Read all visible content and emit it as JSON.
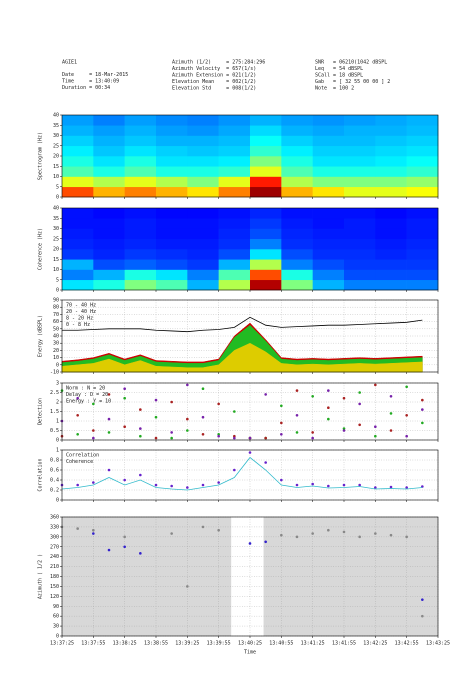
{
  "header": {
    "col1": [
      "AGIE1",
      "Date     = 18-Mar-2015",
      "Time     = 13:40:09",
      "Duration = 00:34"
    ],
    "col2": [
      "Azimuth (1/2)     = 275:284:296",
      "Azimuth Velocity  = 657(1/s)",
      "Azimuth Extension = 021(1/2)",
      "Elevation Mean    = 002(1/2)",
      "Elevation Std     = 008(1/2)"
    ],
    "col3": [
      "SNR   = 06210(1042 dBSPL",
      "Leq   = 54 dBSPL",
      "SCall = 18 dBSPL",
      "Gab   = [ 32 55 00 00 ] 2",
      "Note  = 100 2"
    ]
  },
  "x_axis": {
    "label": "Time",
    "xlim": [
      0,
      360
    ],
    "xticks": [
      {
        "value": 0,
        "label": "13:37:25"
      },
      {
        "value": 30,
        "label": "13:37:55"
      },
      {
        "value": 60,
        "label": "13:38:25"
      },
      {
        "value": 90,
        "label": "13:38:55"
      },
      {
        "value": 120,
        "label": "13:39:25"
      },
      {
        "value": 150,
        "label": "13:39:55"
      },
      {
        "value": 180,
        "label": "13:40:25"
      },
      {
        "value": 210,
        "label": "13:40:55"
      },
      {
        "value": 240,
        "label": "13:41:25"
      },
      {
        "value": 270,
        "label": "13:41:55"
      },
      {
        "value": 300,
        "label": "13:42:25"
      },
      {
        "value": 330,
        "label": "13:42:55"
      },
      {
        "value": 360,
        "label": "13:43:25"
      }
    ],
    "x": [
      0,
      15,
      30,
      45,
      60,
      75,
      90,
      105,
      120,
      135,
      150,
      165,
      180,
      195,
      210,
      225,
      240,
      255,
      270,
      285,
      300,
      315,
      330,
      345
    ]
  },
  "chart_data": [
    {
      "type": "heatmap",
      "ylabel": "Spectrogram (Hz)",
      "ylim": [
        0,
        40
      ],
      "yticks": [
        0,
        5,
        10,
        15,
        20,
        25,
        30,
        35,
        40
      ],
      "colormap": "jet",
      "z": [
        [
          0.8,
          0.7,
          0.75,
          0.7,
          0.65,
          0.75,
          0.97,
          0.7,
          0.65,
          0.6,
          0.6,
          0.62
        ],
        [
          0.6,
          0.55,
          0.6,
          0.55,
          0.5,
          0.6,
          0.85,
          0.55,
          0.5,
          0.5,
          0.5,
          0.52
        ],
        [
          0.45,
          0.4,
          0.45,
          0.4,
          0.4,
          0.42,
          0.6,
          0.45,
          0.4,
          0.4,
          0.4,
          0.42
        ],
        [
          0.4,
          0.35,
          0.4,
          0.35,
          0.35,
          0.36,
          0.5,
          0.4,
          0.35,
          0.35,
          0.36,
          0.38
        ],
        [
          0.36,
          0.32,
          0.35,
          0.33,
          0.32,
          0.33,
          0.42,
          0.36,
          0.33,
          0.33,
          0.34,
          0.35
        ],
        [
          0.33,
          0.3,
          0.32,
          0.3,
          0.3,
          0.31,
          0.38,
          0.33,
          0.31,
          0.31,
          0.32,
          0.33
        ],
        [
          0.3,
          0.28,
          0.3,
          0.28,
          0.27,
          0.29,
          0.34,
          0.3,
          0.29,
          0.3,
          0.3,
          0.31
        ],
        [
          0.28,
          0.25,
          0.28,
          0.26,
          0.25,
          0.27,
          0.3,
          0.28,
          0.27,
          0.28,
          0.29,
          0.3
        ]
      ]
    },
    {
      "type": "heatmap",
      "ylabel": "Coherence (Hz)",
      "ylim": [
        0,
        40
      ],
      "yticks": [
        0,
        5,
        10,
        15,
        20,
        25,
        30,
        35,
        40
      ],
      "colormap": "jet",
      "z": [
        [
          0.35,
          0.4,
          0.5,
          0.45,
          0.3,
          0.55,
          0.95,
          0.5,
          0.3,
          0.25,
          0.25,
          0.25
        ],
        [
          0.25,
          0.3,
          0.4,
          0.35,
          0.25,
          0.45,
          0.8,
          0.4,
          0.25,
          0.2,
          0.2,
          0.2
        ],
        [
          0.3,
          0.2,
          0.22,
          0.2,
          0.18,
          0.3,
          0.55,
          0.25,
          0.2,
          0.18,
          0.18,
          0.18
        ],
        [
          0.18,
          0.16,
          0.18,
          0.17,
          0.16,
          0.2,
          0.35,
          0.2,
          0.17,
          0.17,
          0.16,
          0.17
        ],
        [
          0.16,
          0.15,
          0.16,
          0.15,
          0.15,
          0.17,
          0.25,
          0.17,
          0.16,
          0.16,
          0.15,
          0.16
        ],
        [
          0.15,
          0.14,
          0.15,
          0.14,
          0.14,
          0.16,
          0.2,
          0.16,
          0.15,
          0.15,
          0.14,
          0.15
        ],
        [
          0.14,
          0.14,
          0.15,
          0.14,
          0.14,
          0.15,
          0.18,
          0.15,
          0.14,
          0.15,
          0.14,
          0.15
        ],
        [
          0.14,
          0.13,
          0.14,
          0.13,
          0.13,
          0.14,
          0.16,
          0.14,
          0.14,
          0.14,
          0.13,
          0.14
        ]
      ]
    },
    {
      "type": "area",
      "ylabel": "Energy (dBSPL)",
      "ylim": [
        -10,
        90
      ],
      "yticks": [
        -10,
        0,
        10,
        20,
        30,
        40,
        50,
        60,
        70,
        80,
        90
      ],
      "grid": true,
      "legend": "top-left",
      "series": [
        {
          "name": "70 - 40 Hz",
          "color": "#000000",
          "mode": "lines",
          "values": [
            48,
            48,
            49,
            50,
            50,
            50,
            48,
            47,
            46,
            48,
            49,
            52,
            66,
            55,
            52,
            53,
            54,
            55,
            55,
            56,
            57,
            58,
            59,
            62
          ]
        },
        {
          "name": "20 - 40 Hz",
          "color": "#cc0000",
          "mode": "fill",
          "values": [
            5,
            7,
            10,
            16,
            8,
            14,
            6,
            5,
            4,
            4,
            8,
            40,
            58,
            35,
            10,
            8,
            9,
            8,
            9,
            10,
            9,
            10,
            11,
            12
          ]
        },
        {
          "name": "8 - 20 Hz",
          "color": "#22bb22",
          "mode": "fill",
          "values": [
            3,
            5,
            8,
            14,
            6,
            12,
            4,
            3,
            2,
            2,
            6,
            38,
            55,
            33,
            8,
            6,
            7,
            6,
            7,
            8,
            7,
            8,
            9,
            10
          ]
        },
        {
          "name": "0 - 8 Hz",
          "color": "#ddcc00",
          "mode": "fill",
          "values": [
            -2,
            0,
            2,
            8,
            0,
            6,
            -2,
            -3,
            -4,
            -4,
            0,
            20,
            30,
            18,
            2,
            0,
            1,
            0,
            1,
            2,
            1,
            2,
            3,
            4
          ]
        }
      ]
    },
    {
      "type": "scatter",
      "ylabel": "Detection",
      "ylim": [
        0,
        3
      ],
      "yticks": [
        0,
        0.5,
        1,
        1.5,
        2,
        2.5,
        3
      ],
      "grid": true,
      "legend": "top-left",
      "series": [
        {
          "name": "Norm : N = 20",
          "color": "#22aa22",
          "mode": "markers",
          "values": [
            2.6,
            0.3,
            1.9,
            0.4,
            2.2,
            0.2,
            1.2,
            0.1,
            0.5,
            2.7,
            0.3,
            1.5,
            0.1,
            0.1,
            1.8,
            0.4,
            2.3,
            1.1,
            0.6,
            2.5,
            0.2,
            1.4,
            2.8,
            0.9
          ]
        },
        {
          "name": "Delay : D = 20",
          "color": "#aa2222",
          "mode": "markers",
          "values": [
            0.2,
            1.3,
            0.5,
            2.4,
            0.7,
            1.6,
            0.1,
            2.0,
            1.1,
            0.3,
            1.9,
            0.2,
            0.1,
            0.1,
            0.9,
            2.6,
            0.4,
            1.7,
            2.2,
            0.8,
            2.9,
            0.5,
            1.3,
            2.1
          ]
        },
        {
          "name": "Energy : Y = 10",
          "color": "#7722aa",
          "mode": "markers",
          "values": [
            1.0,
            2.2,
            0.1,
            1.1,
            2.7,
            0.6,
            2.1,
            0.4,
            2.9,
            1.2,
            0.2,
            0.1,
            0.1,
            2.4,
            0.3,
            1.3,
            0.1,
            2.6,
            0.5,
            1.9,
            0.7,
            2.3,
            0.2,
            1.6
          ]
        }
      ]
    },
    {
      "type": "line",
      "ylabel": "Correlation",
      "ylim": [
        0,
        1
      ],
      "yticks": [
        0,
        0.2,
        0.4,
        0.6,
        0.8,
        1
      ],
      "grid": true,
      "legend": "top-left",
      "series": [
        {
          "name": "Correlation",
          "color": "#6622cc",
          "mode": "markers",
          "values": [
            0.3,
            0.3,
            0.35,
            0.6,
            0.4,
            0.5,
            0.3,
            0.28,
            0.25,
            0.3,
            0.35,
            0.6,
            0.95,
            0.75,
            0.4,
            0.3,
            0.32,
            0.28,
            0.3,
            0.3,
            0.25,
            0.26,
            0.25,
            0.27
          ]
        },
        {
          "name": "Coherence",
          "color": "#33bbcc",
          "mode": "lines",
          "values": [
            0.22,
            0.25,
            0.3,
            0.45,
            0.3,
            0.4,
            0.25,
            0.22,
            0.2,
            0.25,
            0.3,
            0.45,
            0.85,
            0.6,
            0.3,
            0.25,
            0.28,
            0.24,
            0.25,
            0.27,
            0.22,
            0.23,
            0.22,
            0.25
          ]
        }
      ]
    },
    {
      "type": "scatter",
      "ylabel": "Azimuth ( 1/2 )",
      "ylim": [
        0,
        360
      ],
      "yticks": [
        0,
        30,
        60,
        90,
        120,
        150,
        180,
        210,
        240,
        270,
        300,
        330,
        360
      ],
      "grid": true,
      "background": "#d8d8d8",
      "highlight_x": [
        162,
        193
      ],
      "series": [
        {
          "color": "#888888",
          "mode": "markers",
          "values": [
            330,
            325,
            320,
            null,
            300,
            null,
            null,
            310,
            150,
            330,
            320,
            null,
            null,
            null,
            305,
            300,
            310,
            320,
            315,
            300,
            310,
            305,
            300,
            60
          ]
        },
        {
          "color": "#3322cc",
          "mode": "markers",
          "values": [
            null,
            null,
            310,
            260,
            270,
            250,
            null,
            null,
            null,
            null,
            null,
            null,
            280,
            285,
            null,
            null,
            null,
            null,
            null,
            null,
            null,
            null,
            null,
            110
          ]
        }
      ]
    }
  ]
}
